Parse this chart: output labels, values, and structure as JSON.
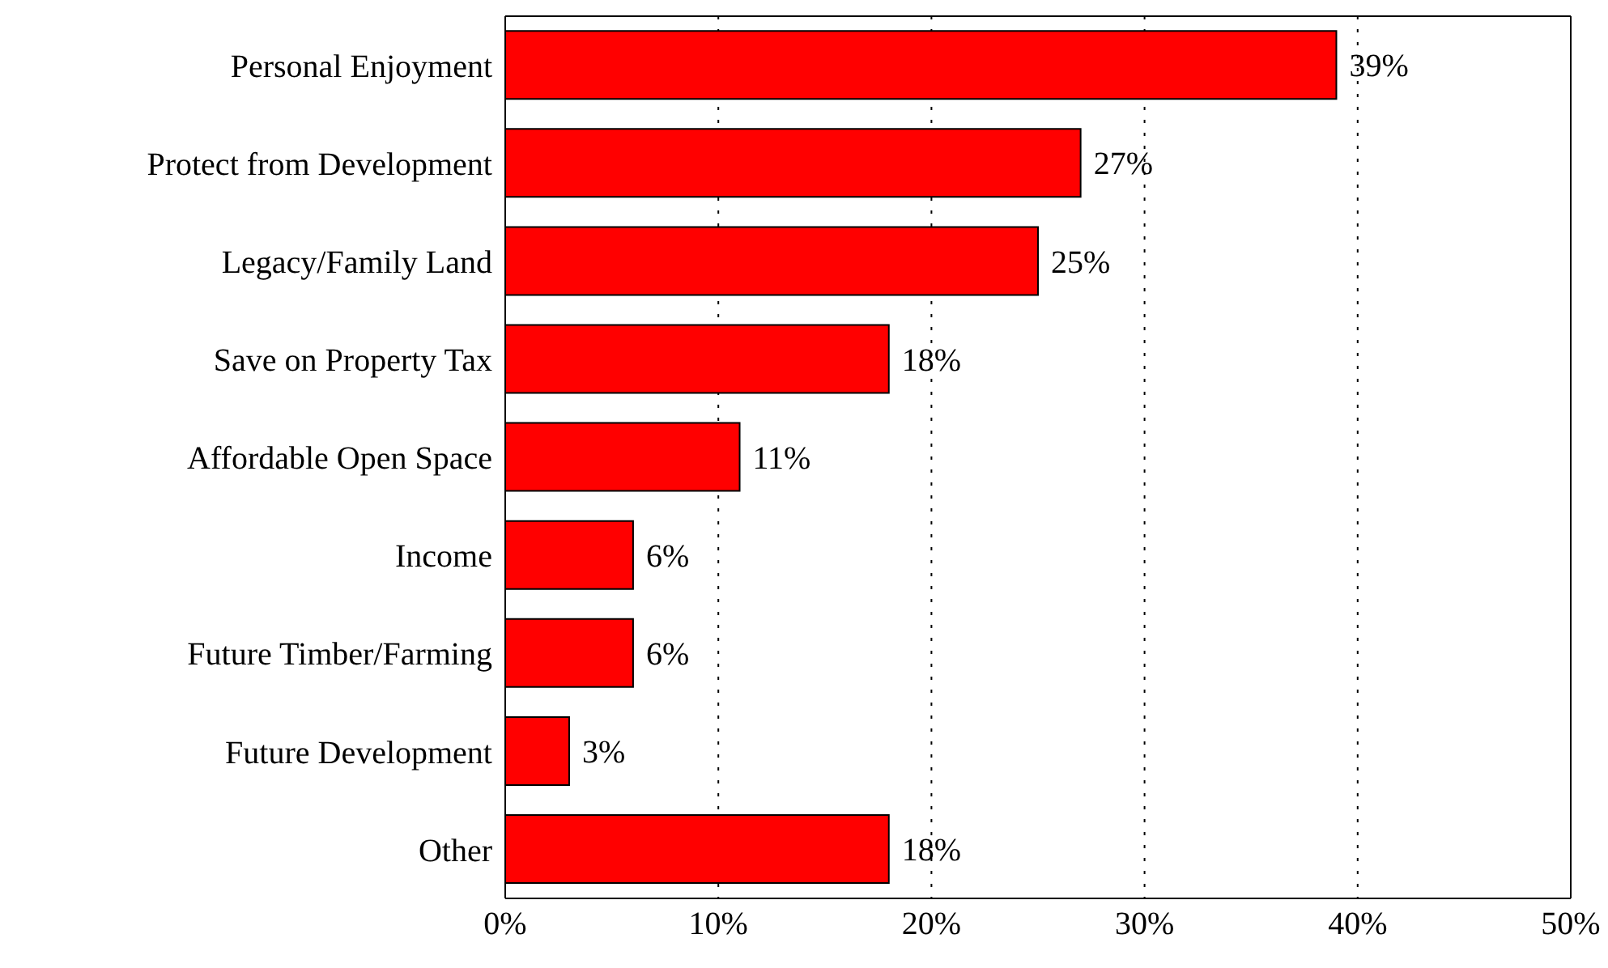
{
  "chart_data": {
    "type": "bar",
    "orientation": "horizontal",
    "categories": [
      "Personal Enjoyment",
      "Protect from Development",
      "Legacy/Family Land",
      "Save on Property Tax",
      "Affordable Open Space",
      "Income",
      "Future Timber/Farming",
      "Future Development",
      "Other"
    ],
    "values": [
      39,
      27,
      25,
      18,
      11,
      6,
      6,
      3,
      18
    ],
    "value_labels": [
      "39%",
      "27%",
      "25%",
      "18%",
      "11%",
      "6%",
      "6%",
      "3%",
      "18%"
    ],
    "color": "#ff0000",
    "xlim": [
      0,
      50
    ],
    "xticks": [
      {
        "value": 0,
        "label": "0%"
      },
      {
        "value": 10,
        "label": "10%"
      },
      {
        "value": 20,
        "label": "20%"
      },
      {
        "value": 30,
        "label": "30%"
      },
      {
        "value": 40,
        "label": "40%"
      },
      {
        "value": 50,
        "label": "50%"
      }
    ],
    "grid": "x"
  }
}
